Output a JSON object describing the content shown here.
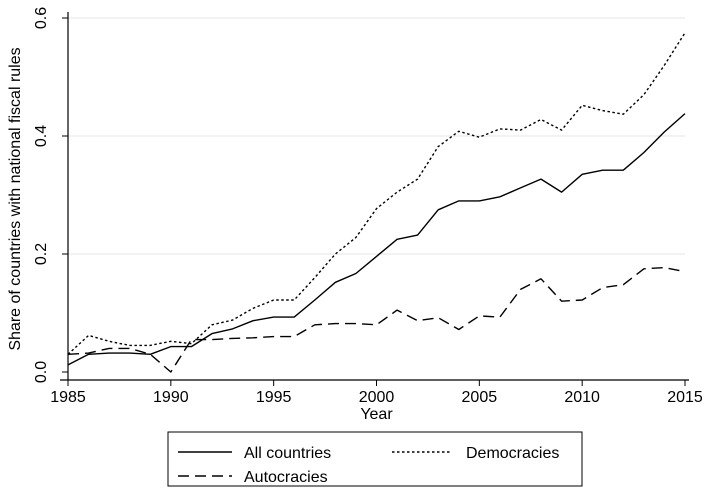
{
  "chart_data": {
    "type": "line",
    "title": "",
    "xlabel": "Year",
    "ylabel": "Share of countries with national fiscal rules",
    "xlim": [
      1985,
      2015
    ],
    "ylim": [
      0,
      0.6
    ],
    "x_ticks": [
      "1985",
      "1990",
      "1995",
      "2000",
      "2005",
      "2010",
      "2015"
    ],
    "y_ticks": [
      "0.0",
      "0.2",
      "0.4",
      "0.6"
    ],
    "grid": "horizontal",
    "legend": "bottom",
    "x": [
      1985,
      1986,
      1987,
      1988,
      1989,
      1990,
      1991,
      1992,
      1993,
      1994,
      1995,
      1996,
      1997,
      1998,
      1999,
      2000,
      2001,
      2002,
      2003,
      2004,
      2005,
      2006,
      2007,
      2008,
      2009,
      2010,
      2011,
      2012,
      2013,
      2014,
      2015
    ],
    "series": [
      {
        "name": "All countries",
        "style": "solid",
        "values": [
          0.012,
          0.03,
          0.032,
          0.032,
          0.03,
          0.043,
          0.043,
          0.065,
          0.073,
          0.087,
          0.093,
          0.093,
          0.122,
          0.152,
          0.167,
          0.196,
          0.225,
          0.232,
          0.275,
          0.29,
          0.29,
          0.297,
          0.312,
          0.327,
          0.305,
          0.335,
          0.342,
          0.342,
          0.372,
          0.407,
          0.438
        ]
      },
      {
        "name": "Democracies",
        "style": "dotted",
        "values": [
          0.03,
          0.062,
          0.052,
          0.045,
          0.045,
          0.052,
          0.048,
          0.08,
          0.088,
          0.108,
          0.122,
          0.122,
          0.16,
          0.2,
          0.228,
          0.277,
          0.305,
          0.327,
          0.382,
          0.408,
          0.398,
          0.412,
          0.41,
          0.428,
          0.41,
          0.452,
          0.443,
          0.437,
          0.47,
          0.52,
          0.575
        ]
      },
      {
        "name": "Autocracies",
        "style": "dashed",
        "values": [
          0.03,
          0.032,
          0.04,
          0.04,
          0.03,
          0.0,
          0.055,
          0.055,
          0.057,
          0.058,
          0.06,
          0.06,
          0.08,
          0.082,
          0.082,
          0.08,
          0.105,
          0.087,
          0.092,
          0.072,
          0.095,
          0.093,
          0.14,
          0.158,
          0.12,
          0.122,
          0.143,
          0.148,
          0.175,
          0.177,
          0.17
        ]
      }
    ]
  }
}
